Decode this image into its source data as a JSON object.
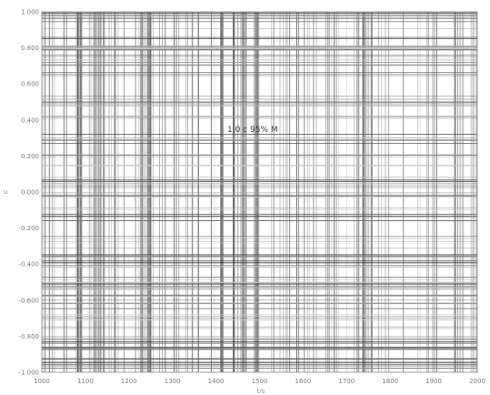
{
  "chart_data": {
    "type": "line",
    "title": "",
    "xlabel": "t/s",
    "ylabel": "u",
    "xlim": [
      1000,
      2000
    ],
    "ylim": [
      -1.0,
      1.0
    ],
    "x_ticks": [
      "1000",
      "1100",
      "1200",
      "1300",
      "1400",
      "1500",
      "1600",
      "1700",
      "1800",
      "1900",
      "2000"
    ],
    "y_ticks": [
      "-1.000",
      "-0.800",
      "-0.600",
      "-0.400",
      "-0.200",
      "0.000",
      "0.200",
      "0.400",
      "0.600",
      "0.800",
      "1.000"
    ],
    "grid": true,
    "annotation": "1.0 c 95% M"
  }
}
